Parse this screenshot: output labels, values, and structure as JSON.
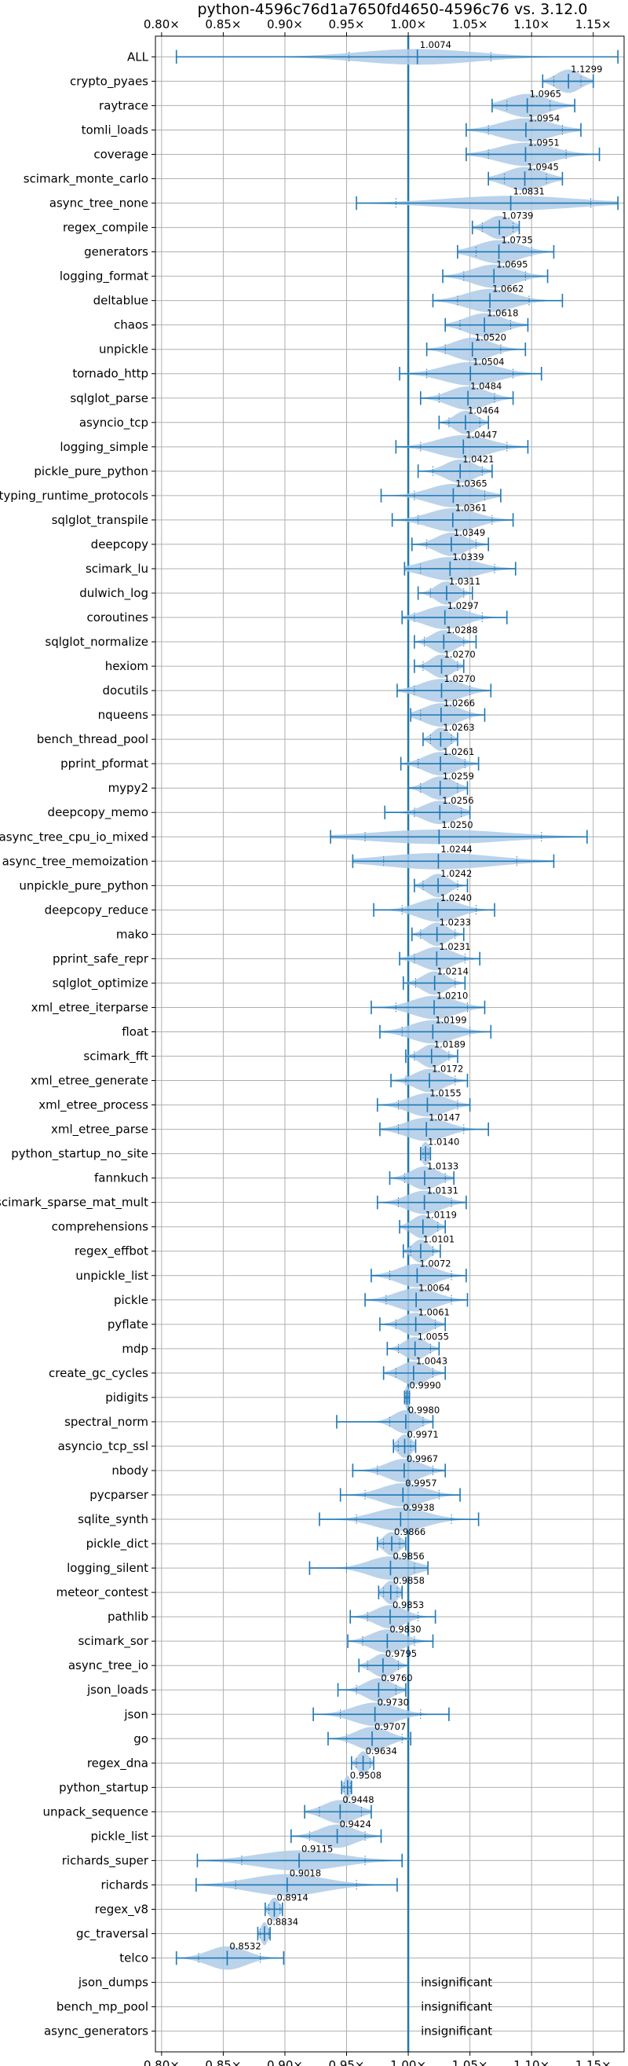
{
  "chart_data": {
    "type": "violin",
    "title": "python-4596c76d1a7650fd4650-4596c76 vs. 3.12.0",
    "xlabel": "",
    "ylabel": "",
    "xlim": [
      0.795,
      1.175
    ],
    "xticks": [
      0.8,
      0.85,
      0.9,
      0.95,
      1.0,
      1.05,
      1.1,
      1.15
    ],
    "xtick_labels": [
      "0.80×",
      "0.85×",
      "0.90×",
      "0.95×",
      "1.00×",
      "1.05×",
      "1.10×",
      "1.15×"
    ],
    "reference_line": 1.0,
    "grid": true,
    "colors": {
      "violin": "#1f77b4",
      "violin_fill": "#aecbe6",
      "grid": "#b0b0b0",
      "reference": "#1f77b4"
    },
    "benchmarks": [
      {
        "name": "ALL",
        "mean": 1.0074,
        "min": 0.812,
        "max": 1.17,
        "p_low": 0.952,
        "p_high": 1.067,
        "spread": 0.085,
        "label": "1.0074"
      },
      {
        "name": "crypto_pyaes",
        "mean": 1.1299,
        "min": 1.109,
        "max": 1.15,
        "p_low": 1.118,
        "p_high": 1.14,
        "spread": 0.018,
        "label": "1.1299"
      },
      {
        "name": "raytrace",
        "mean": 1.0965,
        "min": 1.068,
        "max": 1.135,
        "p_low": 1.08,
        "p_high": 1.115,
        "spread": 0.03,
        "label": "1.0965"
      },
      {
        "name": "tomli_loads",
        "mean": 1.0954,
        "min": 1.047,
        "max": 1.14,
        "p_low": 1.065,
        "p_high": 1.125,
        "spread": 0.038,
        "label": "1.0954"
      },
      {
        "name": "coverage",
        "mean": 1.0951,
        "min": 1.047,
        "max": 1.155,
        "p_low": 1.065,
        "p_high": 1.128,
        "spread": 0.04,
        "label": "1.0951"
      },
      {
        "name": "scimark_monte_carlo",
        "mean": 1.0945,
        "min": 1.065,
        "max": 1.125,
        "p_low": 1.078,
        "p_high": 1.112,
        "spread": 0.028,
        "label": "1.0945"
      },
      {
        "name": "async_tree_none",
        "mean": 1.0831,
        "min": 0.958,
        "max": 1.17,
        "p_low": 0.99,
        "p_high": 1.148,
        "spread": 0.095,
        "label": "1.0831"
      },
      {
        "name": "regex_compile",
        "mean": 1.0739,
        "min": 1.052,
        "max": 1.09,
        "p_low": 1.06,
        "p_high": 1.085,
        "spread": 0.018,
        "label": "1.0739"
      },
      {
        "name": "generators",
        "mean": 1.0735,
        "min": 1.04,
        "max": 1.118,
        "p_low": 1.055,
        "p_high": 1.1,
        "spread": 0.032,
        "label": "1.0735"
      },
      {
        "name": "logging_format",
        "mean": 1.0695,
        "min": 1.028,
        "max": 1.113,
        "p_low": 1.045,
        "p_high": 1.095,
        "spread": 0.032,
        "label": "1.0695"
      },
      {
        "name": "deltablue",
        "mean": 1.0662,
        "min": 1.02,
        "max": 1.125,
        "p_low": 1.04,
        "p_high": 1.098,
        "spread": 0.035,
        "label": "1.0662"
      },
      {
        "name": "chaos",
        "mean": 1.0618,
        "min": 1.03,
        "max": 1.097,
        "p_low": 1.042,
        "p_high": 1.083,
        "spread": 0.028,
        "label": "1.0618"
      },
      {
        "name": "unpickle",
        "mean": 1.052,
        "min": 1.015,
        "max": 1.095,
        "p_low": 1.03,
        "p_high": 1.075,
        "spread": 0.028,
        "label": "1.0520"
      },
      {
        "name": "tornado_http",
        "mean": 1.0504,
        "min": 0.993,
        "max": 1.108,
        "p_low": 1.015,
        "p_high": 1.085,
        "spread": 0.04,
        "label": "1.0504"
      },
      {
        "name": "sqlglot_parse",
        "mean": 1.0484,
        "min": 1.01,
        "max": 1.085,
        "p_low": 1.025,
        "p_high": 1.07,
        "spread": 0.028,
        "label": "1.0484"
      },
      {
        "name": "asyncio_tcp",
        "mean": 1.0464,
        "min": 1.025,
        "max": 1.065,
        "p_low": 1.033,
        "p_high": 1.058,
        "spread": 0.016,
        "label": "1.0464"
      },
      {
        "name": "logging_simple",
        "mean": 1.0447,
        "min": 0.99,
        "max": 1.097,
        "p_low": 1.01,
        "p_high": 1.08,
        "spread": 0.038,
        "label": "1.0447"
      },
      {
        "name": "pickle_pure_python",
        "mean": 1.0421,
        "min": 1.008,
        "max": 1.068,
        "p_low": 1.02,
        "p_high": 1.06,
        "spread": 0.022,
        "label": "1.0421"
      },
      {
        "name": "typing_runtime_protocols",
        "mean": 1.0365,
        "min": 0.978,
        "max": 1.075,
        "p_low": 1.005,
        "p_high": 1.062,
        "spread": 0.035,
        "label": "1.0365"
      },
      {
        "name": "sqlglot_transpile",
        "mean": 1.0361,
        "min": 0.987,
        "max": 1.085,
        "p_low": 1.008,
        "p_high": 1.068,
        "spread": 0.035,
        "label": "1.0361"
      },
      {
        "name": "deepcopy",
        "mean": 1.0349,
        "min": 1.003,
        "max": 1.065,
        "p_low": 1.015,
        "p_high": 1.055,
        "spread": 0.022,
        "label": "1.0349"
      },
      {
        "name": "scimark_lu",
        "mean": 1.0339,
        "min": 0.997,
        "max": 1.087,
        "p_low": 1.01,
        "p_high": 1.07,
        "spread": 0.038,
        "label": "1.0339"
      },
      {
        "name": "dulwich_log",
        "mean": 1.0311,
        "min": 1.008,
        "max": 1.052,
        "p_low": 1.018,
        "p_high": 1.045,
        "spread": 0.016,
        "label": "1.0311"
      },
      {
        "name": "coroutines",
        "mean": 1.0297,
        "min": 0.995,
        "max": 1.08,
        "p_low": 1.005,
        "p_high": 1.06,
        "spread": 0.03,
        "label": "1.0297"
      },
      {
        "name": "sqlglot_normalize",
        "mean": 1.0288,
        "min": 1.005,
        "max": 1.055,
        "p_low": 1.013,
        "p_high": 1.045,
        "spread": 0.018,
        "label": "1.0288"
      },
      {
        "name": "hexiom",
        "mean": 1.027,
        "min": 1.005,
        "max": 1.045,
        "p_low": 1.012,
        "p_high": 1.04,
        "spread": 0.016,
        "label": "1.0270"
      },
      {
        "name": "docutils",
        "mean": 1.027,
        "min": 0.991,
        "max": 1.067,
        "p_low": 1.005,
        "p_high": 1.05,
        "spread": 0.03,
        "label": "1.0270"
      },
      {
        "name": "nqueens",
        "mean": 1.0266,
        "min": 1.002,
        "max": 1.062,
        "p_low": 1.01,
        "p_high": 1.05,
        "spread": 0.026,
        "label": "1.0266"
      },
      {
        "name": "bench_thread_pool",
        "mean": 1.0263,
        "min": 1.012,
        "max": 1.04,
        "p_low": 1.018,
        "p_high": 1.035,
        "spread": 0.012,
        "label": "1.0263"
      },
      {
        "name": "pprint_pformat",
        "mean": 1.0261,
        "min": 0.994,
        "max": 1.057,
        "p_low": 1.008,
        "p_high": 1.046,
        "spread": 0.024,
        "label": "1.0261"
      },
      {
        "name": "mypy2",
        "mean": 1.0259,
        "min": 1.0,
        "max": 1.048,
        "p_low": 1.01,
        "p_high": 1.04,
        "spread": 0.02,
        "label": "1.0259"
      },
      {
        "name": "deepcopy_memo",
        "mean": 1.0256,
        "min": 0.981,
        "max": 1.05,
        "p_low": 1.005,
        "p_high": 1.043,
        "spread": 0.024,
        "label": "1.0256"
      },
      {
        "name": "async_tree_cpu_io_mixed",
        "mean": 1.025,
        "min": 0.937,
        "max": 1.145,
        "p_low": 0.965,
        "p_high": 1.108,
        "spread": 0.095,
        "label": "1.0250"
      },
      {
        "name": "async_tree_memoization",
        "mean": 1.0244,
        "min": 0.955,
        "max": 1.118,
        "p_low": 0.98,
        "p_high": 1.088,
        "spread": 0.08,
        "label": "1.0244"
      },
      {
        "name": "unpickle_pure_python",
        "mean": 1.0242,
        "min": 1.005,
        "max": 1.048,
        "p_low": 1.012,
        "p_high": 1.04,
        "spread": 0.016,
        "label": "1.0242"
      },
      {
        "name": "deepcopy_reduce",
        "mean": 1.024,
        "min": 0.972,
        "max": 1.07,
        "p_low": 0.995,
        "p_high": 1.055,
        "spread": 0.03,
        "label": "1.0240"
      },
      {
        "name": "mako",
        "mean": 1.0233,
        "min": 1.003,
        "max": 1.045,
        "p_low": 1.01,
        "p_high": 1.038,
        "spread": 0.016,
        "label": "1.0233"
      },
      {
        "name": "pprint_safe_repr",
        "mean": 1.0231,
        "min": 0.993,
        "max": 1.058,
        "p_low": 1.005,
        "p_high": 1.046,
        "spread": 0.024,
        "label": "1.0231"
      },
      {
        "name": "sqlglot_optimize",
        "mean": 1.0214,
        "min": 0.996,
        "max": 1.046,
        "p_low": 1.006,
        "p_high": 1.038,
        "spread": 0.018,
        "label": "1.0214"
      },
      {
        "name": "xml_etree_iterparse",
        "mean": 1.021,
        "min": 0.97,
        "max": 1.062,
        "p_low": 0.99,
        "p_high": 1.048,
        "spread": 0.032,
        "label": "1.0210"
      },
      {
        "name": "float",
        "mean": 1.0199,
        "min": 0.977,
        "max": 1.067,
        "p_low": 0.995,
        "p_high": 1.05,
        "spread": 0.032,
        "label": "1.0199"
      },
      {
        "name": "scimark_fft",
        "mean": 1.0189,
        "min": 0.998,
        "max": 1.04,
        "p_low": 1.005,
        "p_high": 1.033,
        "spread": 0.016,
        "label": "1.0189"
      },
      {
        "name": "xml_etree_generate",
        "mean": 1.0172,
        "min": 0.986,
        "max": 1.048,
        "p_low": 0.998,
        "p_high": 1.038,
        "spread": 0.022,
        "label": "1.0172"
      },
      {
        "name": "xml_etree_process",
        "mean": 1.0155,
        "min": 0.975,
        "max": 1.05,
        "p_low": 0.992,
        "p_high": 1.04,
        "spread": 0.028,
        "label": "1.0155"
      },
      {
        "name": "xml_etree_parse",
        "mean": 1.0147,
        "min": 0.977,
        "max": 1.065,
        "p_low": 0.992,
        "p_high": 1.045,
        "spread": 0.03,
        "label": "1.0147"
      },
      {
        "name": "python_startup_no_site",
        "mean": 1.014,
        "min": 1.01,
        "max": 1.018,
        "p_low": 1.012,
        "p_high": 1.016,
        "spread": 0.006,
        "label": "1.0140"
      },
      {
        "name": "fannkuch",
        "mean": 1.0133,
        "min": 0.985,
        "max": 1.037,
        "p_low": 0.997,
        "p_high": 1.03,
        "spread": 0.02,
        "label": "1.0133"
      },
      {
        "name": "scimark_sparse_mat_mult",
        "mean": 1.0131,
        "min": 0.975,
        "max": 1.047,
        "p_low": 0.992,
        "p_high": 1.035,
        "spread": 0.026,
        "label": "1.0131"
      },
      {
        "name": "comprehensions",
        "mean": 1.0119,
        "min": 0.993,
        "max": 1.03,
        "p_low": 1.0,
        "p_high": 1.024,
        "spread": 0.016,
        "label": "1.0119"
      },
      {
        "name": "regex_effbot",
        "mean": 1.0101,
        "min": 0.996,
        "max": 1.026,
        "p_low": 1.002,
        "p_high": 1.02,
        "spread": 0.012,
        "label": "1.0101"
      },
      {
        "name": "unpickle_list",
        "mean": 1.0072,
        "min": 0.97,
        "max": 1.047,
        "p_low": 0.985,
        "p_high": 1.035,
        "spread": 0.028,
        "label": "1.0072"
      },
      {
        "name": "pickle",
        "mean": 1.0064,
        "min": 0.965,
        "max": 1.048,
        "p_low": 0.982,
        "p_high": 1.035,
        "spread": 0.03,
        "label": "1.0064"
      },
      {
        "name": "pyflate",
        "mean": 1.0061,
        "min": 0.977,
        "max": 1.03,
        "p_low": 0.99,
        "p_high": 1.022,
        "spread": 0.02,
        "label": "1.0061"
      },
      {
        "name": "mdp",
        "mean": 1.0055,
        "min": 0.983,
        "max": 1.025,
        "p_low": 0.992,
        "p_high": 1.018,
        "spread": 0.016,
        "label": "1.0055"
      },
      {
        "name": "create_gc_cycles",
        "mean": 1.0043,
        "min": 0.98,
        "max": 1.03,
        "p_low": 0.99,
        "p_high": 1.02,
        "spread": 0.02,
        "label": "1.0043"
      },
      {
        "name": "pidigits",
        "mean": 0.999,
        "min": 0.997,
        "max": 1.001,
        "p_low": 0.998,
        "p_high": 1.0005,
        "spread": 0.003,
        "label": "0.9990"
      },
      {
        "name": "spectral_norm",
        "mean": 0.998,
        "min": 0.942,
        "max": 1.02,
        "p_low": 0.985,
        "p_high": 1.012,
        "spread": 0.018,
        "label": "0.9980"
      },
      {
        "name": "asyncio_tcp_ssl",
        "mean": 0.9971,
        "min": 0.988,
        "max": 1.006,
        "p_low": 0.992,
        "p_high": 1.002,
        "spread": 0.01,
        "label": "0.9971"
      },
      {
        "name": "nbody",
        "mean": 0.9967,
        "min": 0.955,
        "max": 1.03,
        "p_low": 0.975,
        "p_high": 1.02,
        "spread": 0.026,
        "label": "0.9967"
      },
      {
        "name": "pycparser",
        "mean": 0.9957,
        "min": 0.945,
        "max": 1.042,
        "p_low": 0.965,
        "p_high": 1.025,
        "spread": 0.032,
        "label": "0.9957"
      },
      {
        "name": "sqlite_synth",
        "mean": 0.9938,
        "min": 0.928,
        "max": 1.057,
        "p_low": 0.958,
        "p_high": 1.035,
        "spread": 0.038,
        "label": "0.9938"
      },
      {
        "name": "pickle_dict",
        "mean": 0.9866,
        "min": 0.975,
        "max": 0.998,
        "p_low": 0.98,
        "p_high": 0.993,
        "spread": 0.012,
        "label": "0.9866"
      },
      {
        "name": "logging_silent",
        "mean": 0.9856,
        "min": 0.92,
        "max": 1.016,
        "p_low": 0.95,
        "p_high": 1.005,
        "spread": 0.032,
        "label": "0.9856"
      },
      {
        "name": "meteor_contest",
        "mean": 0.9858,
        "min": 0.976,
        "max": 0.995,
        "p_low": 0.98,
        "p_high": 0.991,
        "spread": 0.01,
        "label": "0.9858"
      },
      {
        "name": "pathlib",
        "mean": 0.9853,
        "min": 0.953,
        "max": 1.022,
        "p_low": 0.967,
        "p_high": 1.008,
        "spread": 0.022,
        "label": "0.9853"
      },
      {
        "name": "scimark_sor",
        "mean": 0.983,
        "min": 0.951,
        "max": 1.02,
        "p_low": 0.963,
        "p_high": 1.005,
        "spread": 0.024,
        "label": "0.9830"
      },
      {
        "name": "async_tree_io",
        "mean": 0.9795,
        "min": 0.96,
        "max": 1.0,
        "p_low": 0.967,
        "p_high": 0.992,
        "spread": 0.016,
        "label": "0.9795"
      },
      {
        "name": "json_loads",
        "mean": 0.976,
        "min": 0.943,
        "max": 0.998,
        "p_low": 0.958,
        "p_high": 0.99,
        "spread": 0.02,
        "label": "0.9760"
      },
      {
        "name": "json",
        "mean": 0.973,
        "min": 0.923,
        "max": 1.033,
        "p_low": 0.945,
        "p_high": 1.01,
        "spread": 0.032,
        "label": "0.9730"
      },
      {
        "name": "go",
        "mean": 0.9707,
        "min": 0.935,
        "max": 1.002,
        "p_low": 0.95,
        "p_high": 0.995,
        "spread": 0.024,
        "label": "0.9707"
      },
      {
        "name": "regex_dna",
        "mean": 0.9634,
        "min": 0.954,
        "max": 0.972,
        "p_low": 0.958,
        "p_high": 0.969,
        "spread": 0.008,
        "label": "0.9634"
      },
      {
        "name": "python_startup",
        "mean": 0.9508,
        "min": 0.946,
        "max": 0.954,
        "p_low": 0.948,
        "p_high": 0.953,
        "spread": 0.005,
        "label": "0.9508"
      },
      {
        "name": "unpack_sequence",
        "mean": 0.9448,
        "min": 0.916,
        "max": 0.97,
        "p_low": 0.928,
        "p_high": 0.962,
        "spread": 0.024,
        "label": "0.9448"
      },
      {
        "name": "pickle_list",
        "mean": 0.9424,
        "min": 0.905,
        "max": 0.978,
        "p_low": 0.92,
        "p_high": 0.965,
        "spread": 0.026,
        "label": "0.9424"
      },
      {
        "name": "richards_super",
        "mean": 0.9115,
        "min": 0.829,
        "max": 0.995,
        "p_low": 0.865,
        "p_high": 0.965,
        "spread": 0.06,
        "label": "0.9115"
      },
      {
        "name": "richards",
        "mean": 0.9018,
        "min": 0.828,
        "max": 0.991,
        "p_low": 0.86,
        "p_high": 0.958,
        "spread": 0.055,
        "label": "0.9018"
      },
      {
        "name": "regex_v8",
        "mean": 0.8914,
        "min": 0.884,
        "max": 0.898,
        "p_low": 0.887,
        "p_high": 0.896,
        "spread": 0.007,
        "label": "0.8914"
      },
      {
        "name": "gc_traversal",
        "mean": 0.8834,
        "min": 0.878,
        "max": 0.888,
        "p_low": 0.88,
        "p_high": 0.887,
        "spread": 0.005,
        "label": "0.8834"
      },
      {
        "name": "telco",
        "mean": 0.8532,
        "min": 0.812,
        "max": 0.899,
        "p_low": 0.83,
        "p_high": 0.88,
        "spread": 0.028,
        "label": "0.8532"
      },
      {
        "name": "json_dumps",
        "insignificant": true,
        "label": "insignificant"
      },
      {
        "name": "bench_mp_pool",
        "insignificant": true,
        "label": "insignificant"
      },
      {
        "name": "async_generators",
        "insignificant": true,
        "label": "insignificant"
      }
    ]
  }
}
